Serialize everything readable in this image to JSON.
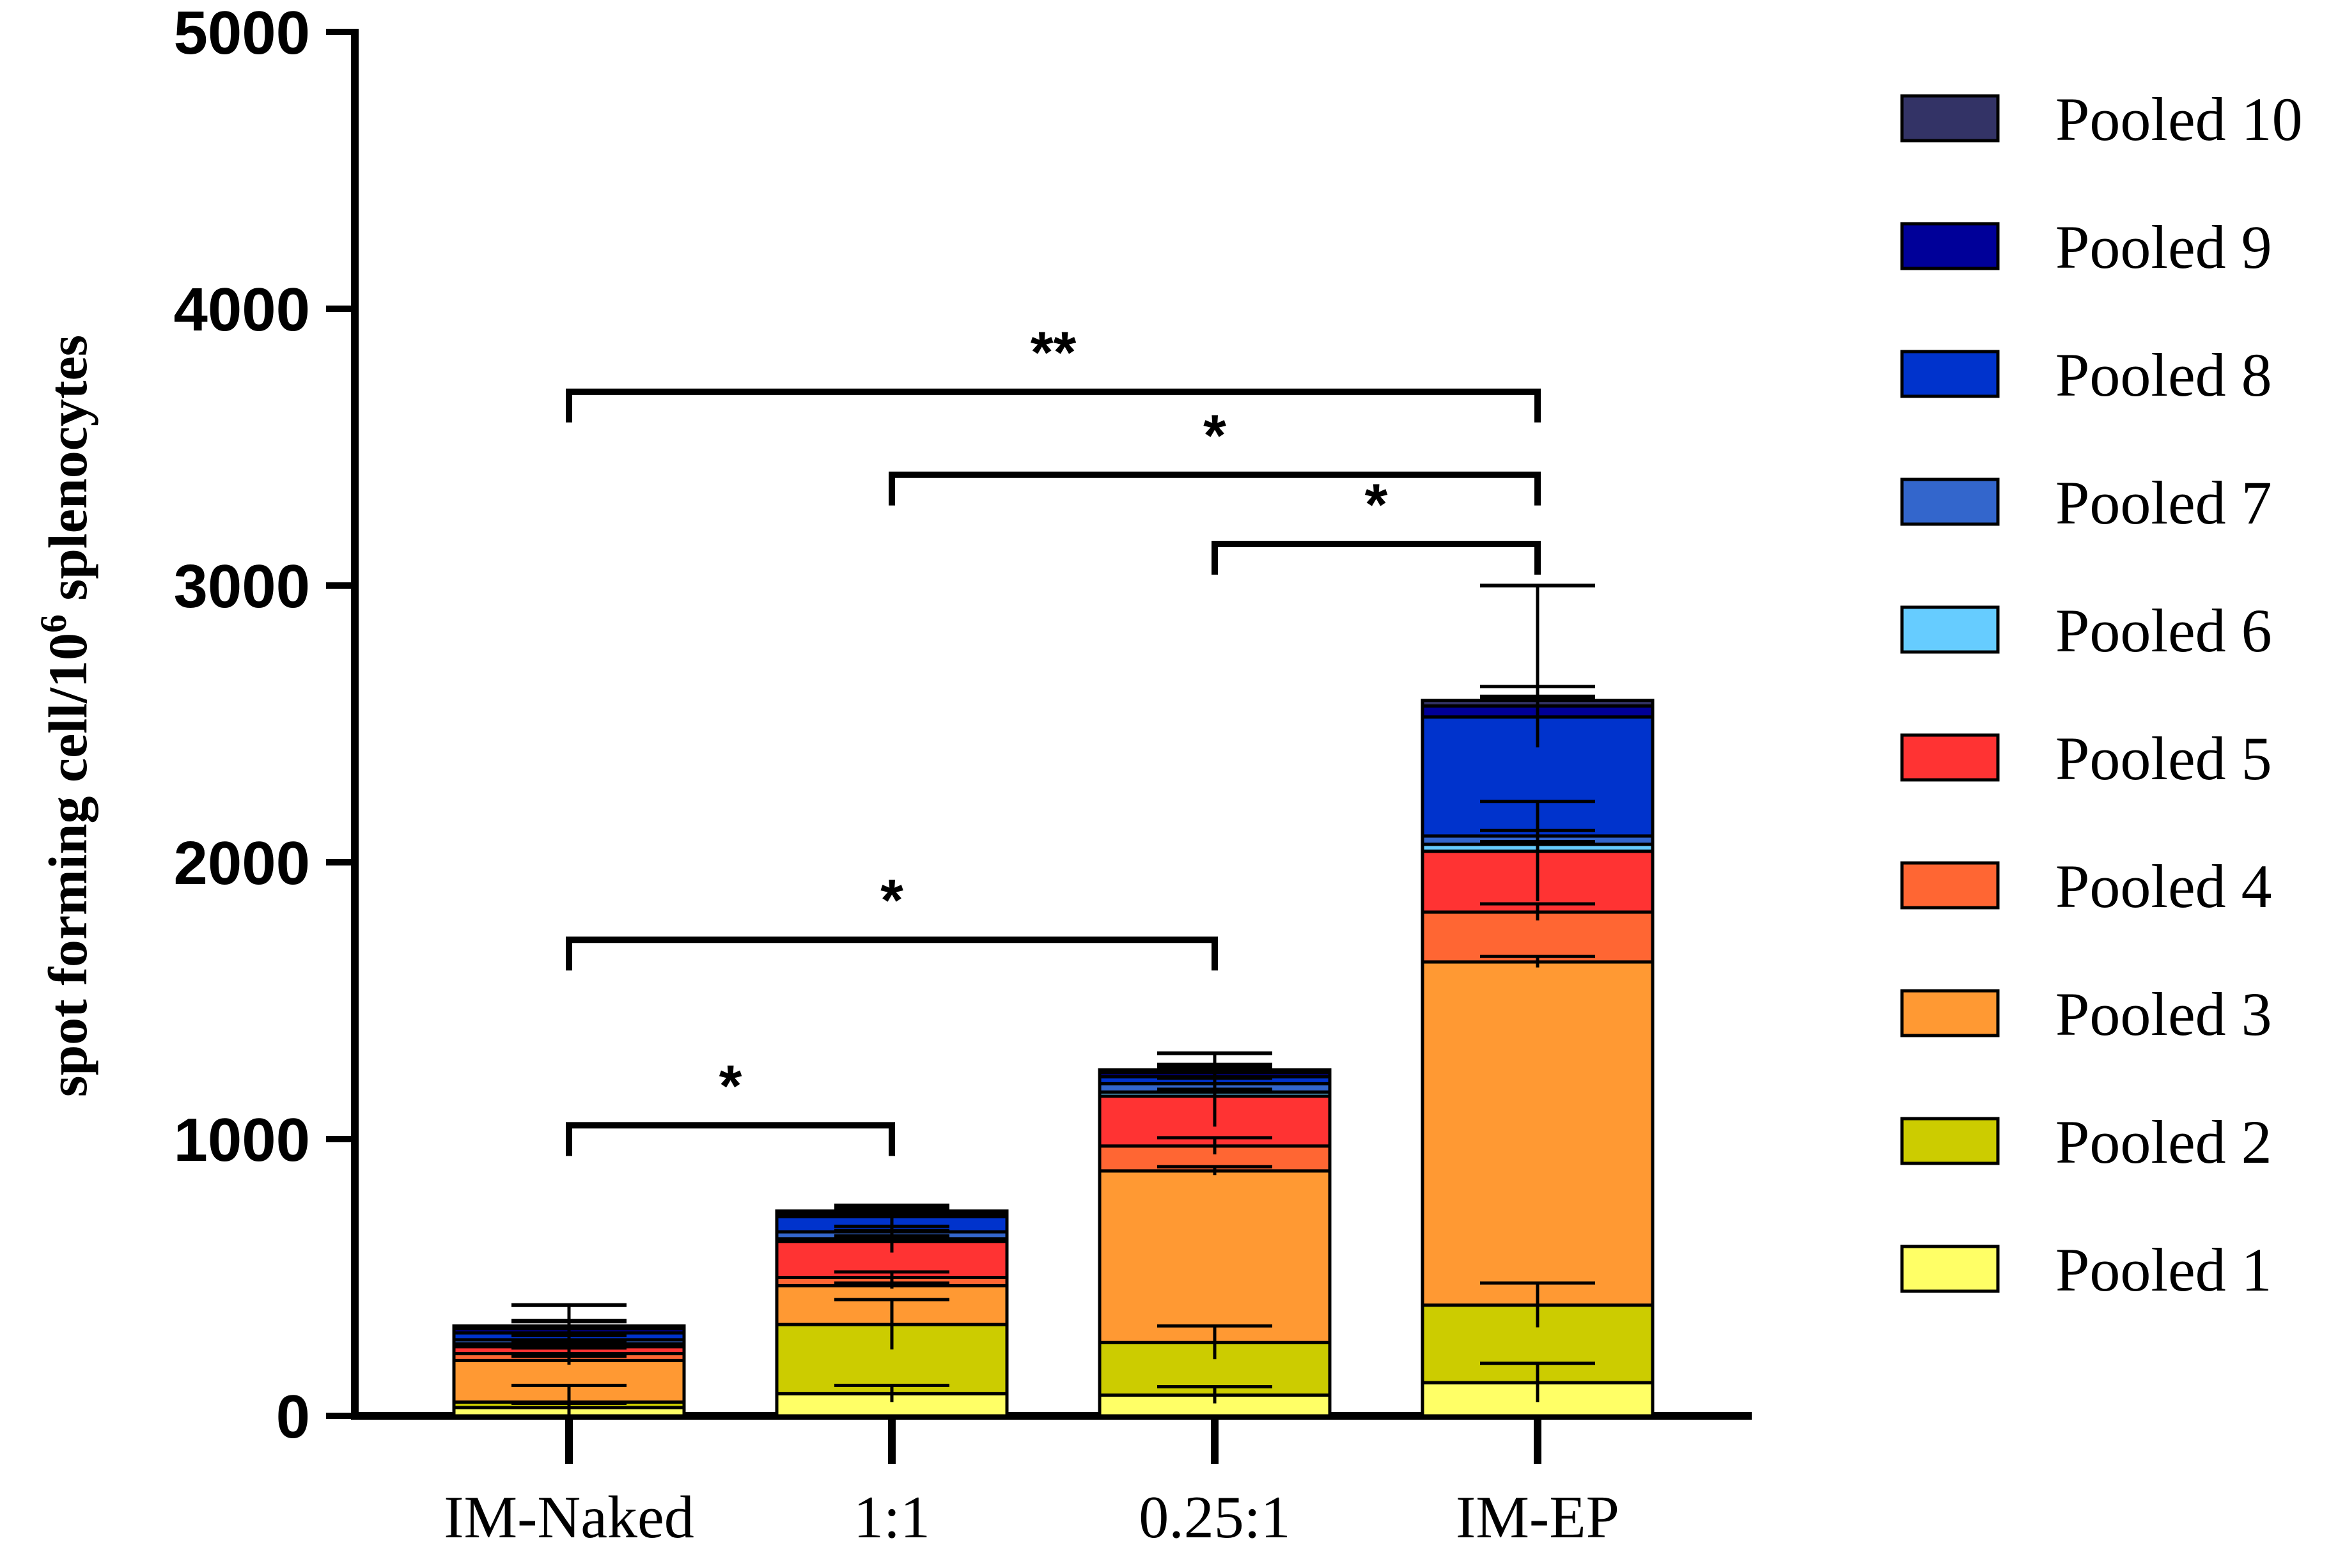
{
  "chart_data": {
    "type": "bar",
    "stacked": true,
    "categories": [
      "IM-Naked",
      "1:1",
      "0.25:1",
      "IM-EP"
    ],
    "ylabel": "spot forming cell/10^6 splenocytes",
    "ylabel_parts": {
      "before": "spot forming cell/10",
      "sup": "6",
      "after": " splenocytes"
    },
    "ylim": [
      0,
      5000
    ],
    "yticks": [
      "0",
      "1000",
      "2000",
      "3000",
      "4000",
      "5000"
    ],
    "legend_position": "right",
    "series": [
      {
        "name": "Pooled 1",
        "color": "#ffff66",
        "values": [
          30,
          80,
          75,
          120
        ],
        "errors": [
          15,
          30,
          30,
          70
        ]
      },
      {
        "name": "Pooled 2",
        "color": "#cccc00",
        "values": [
          20,
          250,
          190,
          280
        ],
        "errors": [
          60,
          90,
          60,
          80
        ]
      },
      {
        "name": "Pooled 3",
        "color": "#ff9933",
        "values": [
          150,
          140,
          620,
          1240
        ],
        "errors": [
          15,
          10,
          15,
          20
        ]
      },
      {
        "name": "Pooled 4",
        "color": "#ff6633",
        "values": [
          25,
          30,
          90,
          180
        ],
        "errors": [
          20,
          20,
          30,
          30
        ]
      },
      {
        "name": "Pooled 5",
        "color": "#ff3333",
        "values": [
          25,
          130,
          180,
          220
        ],
        "errors": [
          40,
          40,
          110,
          180
        ]
      },
      {
        "name": "Pooled 6",
        "color": "#66ccff",
        "values": [
          10,
          10,
          15,
          25
        ],
        "errors": [
          10,
          10,
          10,
          10
        ]
      },
      {
        "name": "Pooled 7",
        "color": "#3366cc",
        "values": [
          15,
          25,
          30,
          30
        ],
        "errors": [
          20,
          20,
          20,
          20
        ]
      },
      {
        "name": "Pooled 8",
        "color": "#0033cc",
        "values": [
          25,
          55,
          25,
          430
        ],
        "errors": [
          20,
          30,
          20,
          110
        ]
      },
      {
        "name": "Pooled 9",
        "color": "#000099",
        "values": [
          15,
          10,
          15,
          40
        ],
        "errors": [
          30,
          30,
          30,
          30
        ]
      },
      {
        "name": "Pooled 10",
        "color": "#333366",
        "values": [
          10,
          10,
          10,
          20
        ],
        "errors": [
          15,
          10,
          10,
          15
        ]
      }
    ],
    "total_error_top": [
      400,
      760,
      1310,
      3000
    ],
    "significance": [
      {
        "from": "IM-Naked",
        "to": "IM-EP",
        "label": "**",
        "y": 3700
      },
      {
        "from": "1:1",
        "to": "IM-EP",
        "label": "*",
        "y": 3400
      },
      {
        "from": "0.25:1",
        "to": "IM-EP",
        "label": "*",
        "y": 3150
      },
      {
        "from": "IM-Naked",
        "to": "0.25:1",
        "label": "*",
        "y": 1720
      },
      {
        "from": "IM-Naked",
        "to": "1:1",
        "label": "*",
        "y": 1050
      }
    ]
  }
}
